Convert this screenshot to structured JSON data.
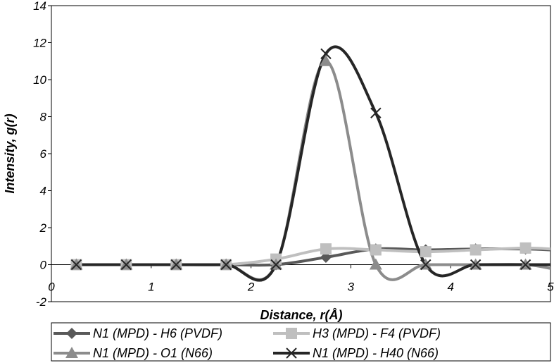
{
  "chart_data": {
    "type": "line",
    "title": "",
    "xlabel": "Distance, r(Å)",
    "ylabel": "Intensity, g(r)",
    "xlim": [
      0,
      5
    ],
    "ylim": [
      -2,
      14
    ],
    "xticks": [
      0,
      1,
      2,
      3,
      4,
      5
    ],
    "yticks": [
      -2,
      0,
      2,
      4,
      6,
      8,
      10,
      12,
      14
    ],
    "grid": false,
    "legend_position": "bottom",
    "x": [
      0.25,
      0.75,
      1.25,
      1.75,
      2.25,
      2.75,
      3.25,
      3.75,
      4.25,
      4.75,
      5.0
    ],
    "series": [
      {
        "name": "N1 (MPD) - H6 (PVDF)",
        "color": "#595959",
        "marker": "diamond",
        "values": [
          0,
          0,
          0,
          0,
          0.0,
          0.4,
          0.85,
          0.8,
          0.85,
          0.85,
          0.8
        ]
      },
      {
        "name": "H3 (MPD) - F4 (PVDF)",
        "color": "#bfbfbf",
        "marker": "square",
        "values": [
          0,
          0,
          0,
          0,
          0.3,
          0.85,
          0.8,
          0.7,
          0.8,
          0.9,
          0.85
        ]
      },
      {
        "name": "N1 (MPD) - O1 (N66)",
        "color": "#8c8c8c",
        "marker": "triangle",
        "values": [
          0,
          0,
          0,
          0,
          0,
          11.0,
          0.0,
          0,
          0,
          0,
          -0.2
        ]
      },
      {
        "name": "N1 (MPD) - H40 (N66)",
        "color": "#262626",
        "marker": "x",
        "values": [
          0,
          0,
          0,
          0,
          0,
          11.4,
          8.2,
          0,
          0,
          0,
          0
        ]
      }
    ]
  }
}
